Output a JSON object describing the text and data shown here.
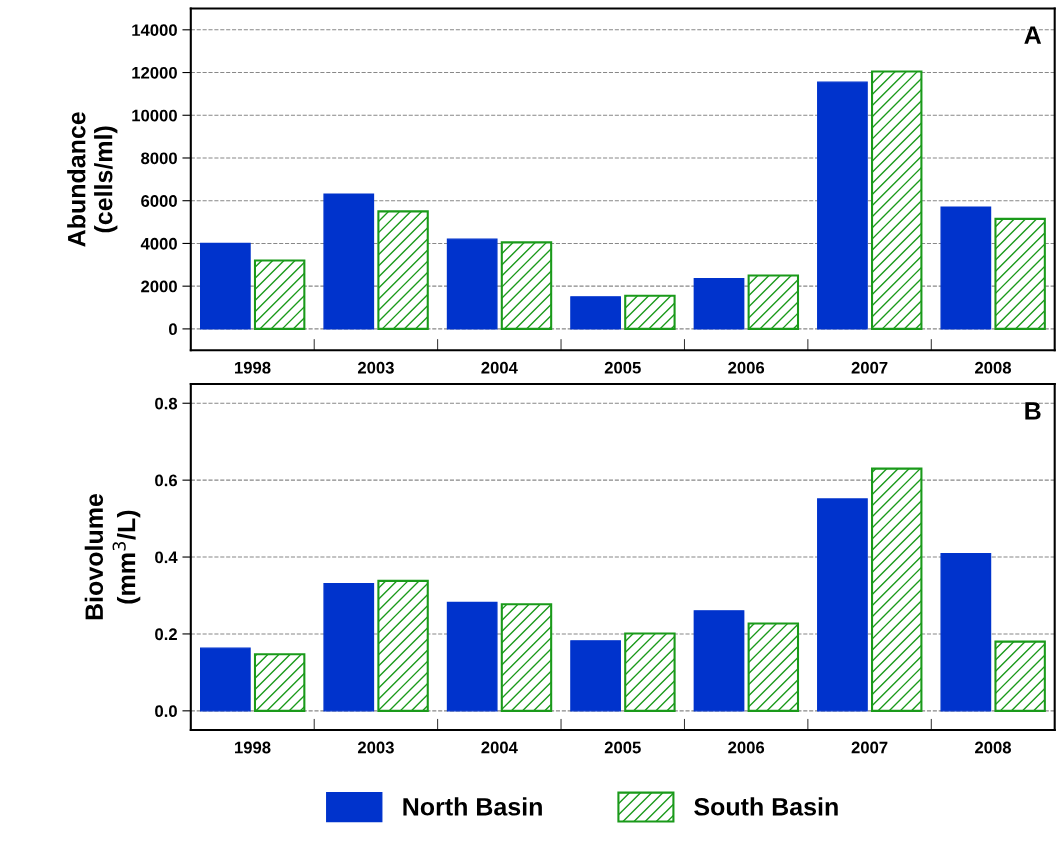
{
  "chart_data": [
    {
      "type": "bar",
      "ylabel": "Abundance\n(cells/ml)",
      "annotations": [
        "A"
      ],
      "categories": [
        "1998",
        "2003",
        "2004",
        "2005",
        "2006",
        "2007",
        "2008"
      ],
      "series": [
        {
          "color": "#0033cc",
          "values": [
            4000,
            6300,
            4200,
            1500,
            2350,
            11550,
            5700
          ]
        },
        {
          "color": "#1a9a1a",
          "values": [
            3200,
            5500,
            4050,
            1550,
            2500,
            12050,
            5150
          ]
        }
      ],
      "ylim": [
        -1000,
        15000
      ],
      "yticks": [
        0,
        2000,
        4000,
        6000,
        8000,
        10000,
        12000,
        14000
      ],
      "grid": "y"
    },
    {
      "type": "bar",
      "ylabel": "Biovolume\n(mm$^{3}$/L)",
      "annotations": [
        "B"
      ],
      "categories": [
        "1998",
        "2003",
        "2004",
        "2005",
        "2006",
        "2007",
        "2008"
      ],
      "series": [
        {
          "name": "North Basin",
          "color": "#0033cc",
          "values": [
            0.163,
            0.331,
            0.282,
            0.182,
            0.26,
            0.551,
            0.409
          ]
        },
        {
          "name": "South Basin",
          "color": "#1a9a1a",
          "values": [
            0.147,
            0.338,
            0.277,
            0.201,
            0.227,
            0.63,
            0.18
          ]
        }
      ],
      "ylim": [
        -0.05,
        0.85
      ],
      "yticks": [
        {
          "value": 0,
          "label": "0.0"
        },
        0.2,
        0.4,
        0.6,
        0.8
      ],
      "grid": "y",
      "legend": "bottom"
    }
  ]
}
